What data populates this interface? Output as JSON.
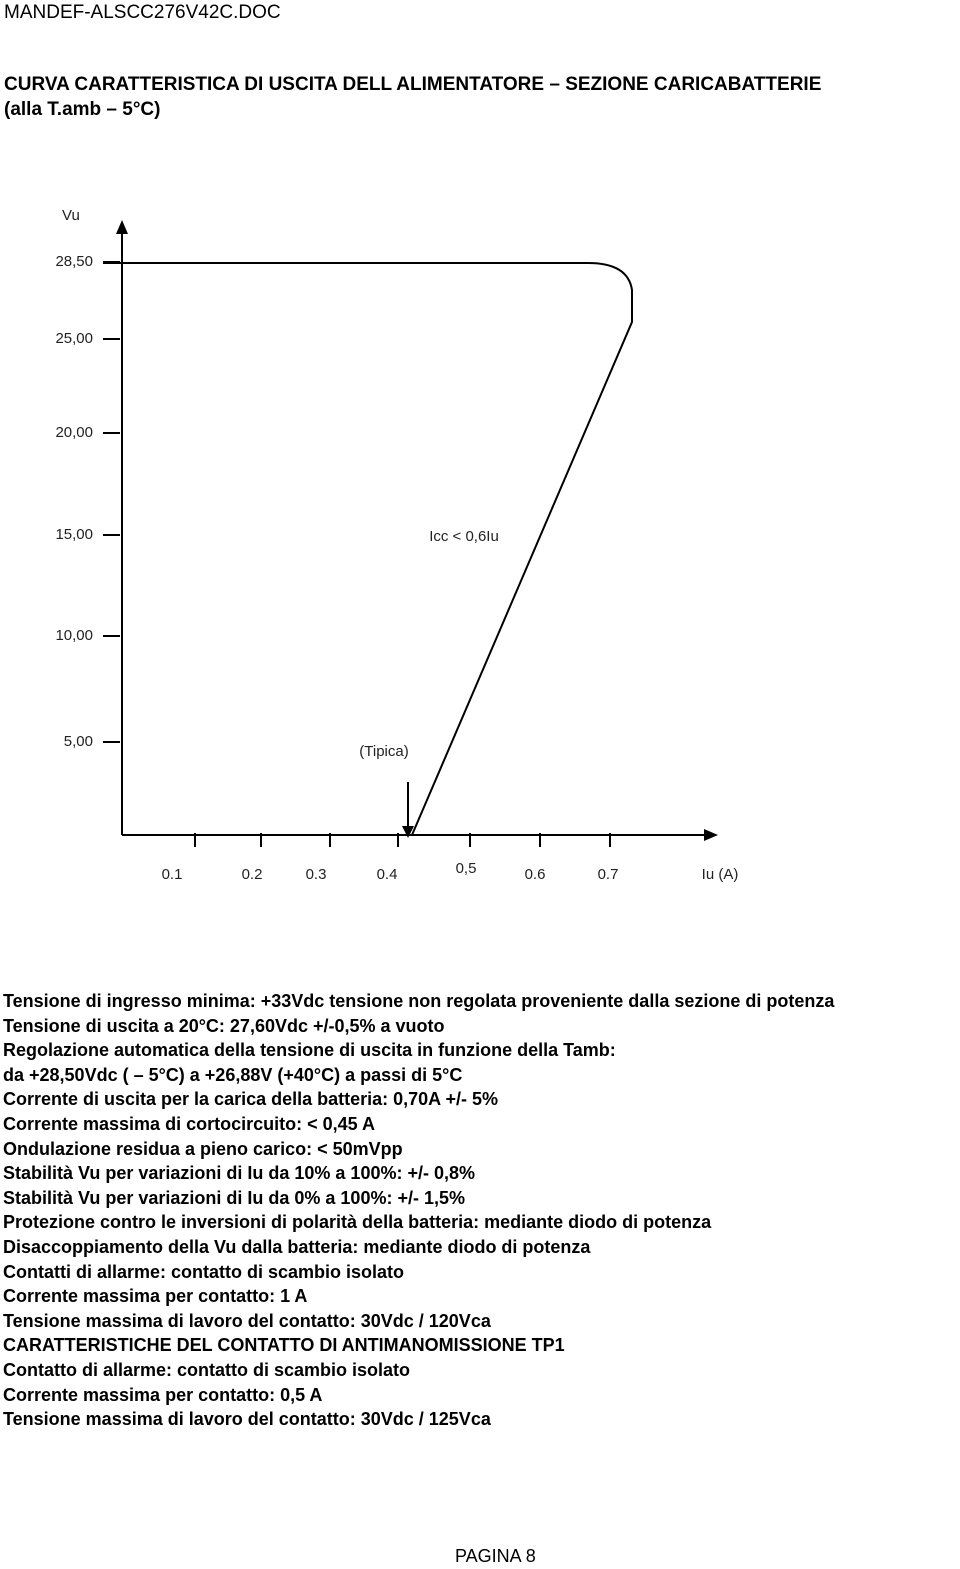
{
  "header": "MANDEF-ALSCC276V42C.DOC",
  "title": [
    "CURVA CARATTERISTICA DI USCITA DELL ALIMENTATORE – SEZIONE CARICABATTERIE",
    "(alla T.amb – 5°C)"
  ],
  "figure": {
    "y_label": "Vu",
    "y_ticks": [
      "28,50",
      "25,00",
      "20,00",
      "15,00",
      "10,00",
      "5,00"
    ],
    "x_ticks": [
      "0.1",
      "0.2",
      "0.3",
      "0.4",
      "0,5",
      "0.6",
      "0.7"
    ],
    "x_label": "Iu (A)",
    "annotations": [
      "Icc < 0,6Iu",
      "(Tipica)"
    ]
  },
  "specs": [
    "Tensione di ingresso minima: +33Vdc tensione non regolata proveniente dalla sezione di potenza",
    "Tensione di uscita a 20°C: 27,60Vdc +/-0,5% a vuoto",
    "Regolazione automatica della tensione di uscita in funzione della Tamb:",
    "da +28,50Vdc ( – 5°C) a  +26,88V (+40°C) a passi di 5°C",
    "Corrente di uscita per la carica della batteria: 0,70A +/- 5%",
    "Corrente massima di cortocircuito: < 0,45 A",
    "Ondulazione residua a pieno carico: < 50mVpp",
    "Stabilità Vu per variazioni di Iu da 10% a 100%: +/- 0,8%",
    "Stabilità Vu per variazioni di Iu da 0% a 100%: +/- 1,5%",
    "Protezione contro le inversioni di polarità della batteria: mediante diodo di potenza",
    "Disaccoppiamento della Vu dalla batteria: mediante diodo di potenza",
    "Contatti di allarme: contatto di scambio isolato",
    "Corrente massima per contatto: 1 A",
    "Tensione massima di lavoro del contatto: 30Vdc / 120Vca",
    "CARATTERISTICHE DEL CONTATTO DI ANTIMANOMISSIONE TP1",
    "Contatto di allarme: contatto di scambio isolato",
    "Corrente massima per contatto: 0,5 A",
    "Tensione massima di lavoro del contatto: 30Vdc / 125Vca"
  ],
  "footer": "PAGINA 8"
}
